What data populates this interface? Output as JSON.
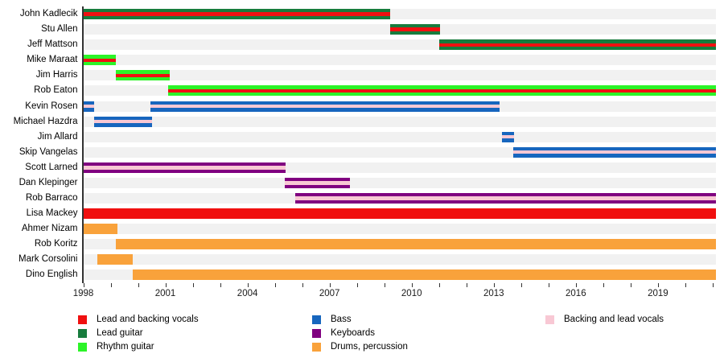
{
  "chart_data": {
    "type": "bar",
    "variant": "horizontal-timeline-gantt",
    "title": "",
    "xlabel": "",
    "ylabel": "",
    "grid": false,
    "legend_position": "bottom",
    "x_axis": {
      "min": 1998,
      "max": 2021.12,
      "tick_step": 1,
      "label_step": 3,
      "tick_labels": [
        "1998",
        "2001",
        "2004",
        "2007",
        "2010",
        "2013",
        "2016",
        "2019"
      ]
    },
    "roles": {
      "lead_vocals": {
        "label": "Lead and backing vocals",
        "color": "#F01010"
      },
      "lead_guitar": {
        "label": "Lead guitar",
        "color": "#177C3D"
      },
      "rhythm_guitar": {
        "label": "Rhythm guitar",
        "color": "#2CF428"
      },
      "bass": {
        "label": "Bass",
        "color": "#1766BE"
      },
      "keyboards": {
        "label": "Keyboards",
        "color": "#800080"
      },
      "drums": {
        "label": "Drums, percussion",
        "color": "#F9A23B"
      },
      "backing_vocals": {
        "label": "Backing and lead vocals",
        "color": "#F8C8D4"
      }
    },
    "track_color": "#F1F1F1",
    "members": [
      {
        "name": "John Kadlecik",
        "segments": [
          {
            "start": 1998.0,
            "end": 2009.2,
            "fill": "lead_guitar",
            "stripe": "lead_vocals"
          }
        ]
      },
      {
        "name": "Stu Allen",
        "segments": [
          {
            "start": 2009.2,
            "end": 2011.05,
            "fill": "lead_guitar",
            "stripe": "lead_vocals"
          }
        ]
      },
      {
        "name": "Jeff Mattson",
        "segments": [
          {
            "start": 2011.0,
            "end": 2021.12,
            "fill": "lead_guitar",
            "stripe": "lead_vocals"
          }
        ]
      },
      {
        "name": "Mike Maraat",
        "segments": [
          {
            "start": 1998.0,
            "end": 1999.2,
            "fill": "rhythm_guitar",
            "stripe": "lead_vocals"
          }
        ]
      },
      {
        "name": "Jim Harris",
        "segments": [
          {
            "start": 1999.2,
            "end": 2001.15,
            "fill": "rhythm_guitar",
            "stripe": "lead_vocals"
          }
        ]
      },
      {
        "name": "Rob Eaton",
        "segments": [
          {
            "start": 2001.1,
            "end": 2021.12,
            "fill": "rhythm_guitar",
            "stripe": "lead_vocals"
          }
        ]
      },
      {
        "name": "Kevin Rosen",
        "segments": [
          {
            "start": 1998.0,
            "end": 1998.4,
            "fill": "bass",
            "stripe": "backing_vocals"
          },
          {
            "start": 2000.45,
            "end": 2013.2,
            "fill": "bass",
            "stripe": "backing_vocals"
          }
        ]
      },
      {
        "name": "Michael Hazdra",
        "segments": [
          {
            "start": 1998.4,
            "end": 2000.5,
            "fill": "bass",
            "stripe": "backing_vocals"
          }
        ]
      },
      {
        "name": "Jim Allard",
        "segments": [
          {
            "start": 2013.3,
            "end": 2013.75,
            "fill": "bass",
            "stripe": "backing_vocals"
          }
        ]
      },
      {
        "name": "Skip Vangelas",
        "segments": [
          {
            "start": 2013.7,
            "end": 2021.12,
            "fill": "bass",
            "stripe": "backing_vocals"
          }
        ]
      },
      {
        "name": "Scott Larned",
        "segments": [
          {
            "start": 1998.0,
            "end": 2005.4,
            "fill": "keyboards",
            "stripe": "backing_vocals"
          }
        ]
      },
      {
        "name": "Dan Klepinger",
        "segments": [
          {
            "start": 2005.35,
            "end": 2007.75,
            "fill": "keyboards",
            "stripe": "backing_vocals"
          }
        ]
      },
      {
        "name": "Rob Barraco",
        "segments": [
          {
            "start": 2005.75,
            "end": 2021.12,
            "fill": "keyboards",
            "stripe": "backing_vocals"
          }
        ]
      },
      {
        "name": "Lisa Mackey",
        "segments": [
          {
            "start": 1998.0,
            "end": 2021.12,
            "fill": "lead_vocals",
            "stripe": null
          }
        ]
      },
      {
        "name": "Ahmer Nizam",
        "segments": [
          {
            "start": 1998.0,
            "end": 1999.25,
            "fill": "drums",
            "stripe": null
          }
        ]
      },
      {
        "name": "Rob Koritz",
        "segments": [
          {
            "start": 1999.2,
            "end": 2021.12,
            "fill": "drums",
            "stripe": null
          }
        ]
      },
      {
        "name": "Mark Corsolini",
        "segments": [
          {
            "start": 1998.5,
            "end": 1999.8,
            "fill": "drums",
            "stripe": null
          }
        ]
      },
      {
        "name": "Dino English",
        "segments": [
          {
            "start": 1999.8,
            "end": 2021.12,
            "fill": "drums",
            "stripe": null
          }
        ]
      }
    ],
    "legend": {
      "columns": [
        {
          "items": [
            "lead_vocals",
            "lead_guitar",
            "rhythm_guitar"
          ]
        },
        {
          "items": [
            "bass",
            "keyboards",
            "drums"
          ]
        },
        {
          "items": [
            "backing_vocals"
          ]
        }
      ]
    }
  }
}
